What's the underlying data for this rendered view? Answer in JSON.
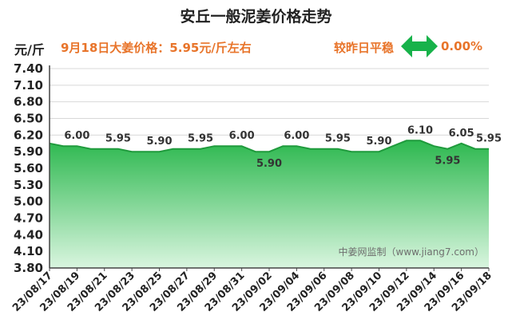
{
  "header": {
    "title": "安丘一般泥姜价格走势",
    "unit": "元/斤",
    "price_text": "9月18日大姜价格：5.95元/斤左右",
    "compare_text": "较昨日平稳",
    "change_text": "0.00%"
  },
  "watermark": "中姜网监制（www.jiang7.com）",
  "colors": {
    "accent": "#e8742a",
    "fill_top": "#2db84f",
    "fill_bottom": "#d9f5df",
    "line": "#1f9a3c",
    "arrow": "#17b24a"
  },
  "chart_data": {
    "type": "area",
    "title": "安丘一般泥姜价格走势",
    "ylabel": "元/斤",
    "ylim": [
      3.8,
      7.4
    ],
    "yticks": [
      3.8,
      4.1,
      4.4,
      4.7,
      5.0,
      5.3,
      5.6,
      5.9,
      6.2,
      6.5,
      6.8,
      7.1,
      7.4
    ],
    "grid": true,
    "x": [
      "23/08/17",
      "23/08/18",
      "23/08/19",
      "23/08/20",
      "23/08/21",
      "23/08/22",
      "23/08/23",
      "23/08/24",
      "23/08/25",
      "23/08/26",
      "23/08/27",
      "23/08/28",
      "23/08/29",
      "23/08/30",
      "23/08/31",
      "23/09/01",
      "23/09/02",
      "23/09/03",
      "23/09/04",
      "23/09/05",
      "23/09/06",
      "23/09/07",
      "23/09/08",
      "23/09/09",
      "23/09/10",
      "23/09/11",
      "23/09/12",
      "23/09/13",
      "23/09/14",
      "23/09/15",
      "23/09/16",
      "23/09/17",
      "23/09/18"
    ],
    "xtick_labels": [
      "23/08/17",
      "23/08/19",
      "23/08/21",
      "23/08/23",
      "23/08/25",
      "23/08/27",
      "23/08/29",
      "23/08/31",
      "23/09/02",
      "23/09/04",
      "23/09/06",
      "23/09/08",
      "23/09/10",
      "23/09/12",
      "23/09/14",
      "23/09/16",
      "23/09/18"
    ],
    "series": [
      {
        "values": [
          6.05,
          6.0,
          6.0,
          5.95,
          5.95,
          5.95,
          5.9,
          5.9,
          5.9,
          5.95,
          5.95,
          5.95,
          6.0,
          6.0,
          6.0,
          5.9,
          5.9,
          6.0,
          6.0,
          5.95,
          5.95,
          5.95,
          5.9,
          5.9,
          5.9,
          6.0,
          6.1,
          6.1,
          6.0,
          5.95,
          6.05,
          5.95,
          5.95
        ]
      }
    ],
    "data_labels": [
      {
        "index": 2,
        "text": "6.00",
        "pos": "above"
      },
      {
        "index": 5,
        "text": "5.95",
        "pos": "above"
      },
      {
        "index": 8,
        "text": "5.90",
        "pos": "above"
      },
      {
        "index": 11,
        "text": "5.95",
        "pos": "above"
      },
      {
        "index": 14,
        "text": "6.00",
        "pos": "above"
      },
      {
        "index": 16,
        "text": "5.90",
        "pos": "below"
      },
      {
        "index": 18,
        "text": "6.00",
        "pos": "above"
      },
      {
        "index": 21,
        "text": "5.95",
        "pos": "above"
      },
      {
        "index": 24,
        "text": "5.90",
        "pos": "above"
      },
      {
        "index": 27,
        "text": "6.10",
        "pos": "above"
      },
      {
        "index": 29,
        "text": "5.95",
        "pos": "below"
      },
      {
        "index": 30,
        "text": "6.05",
        "pos": "above"
      },
      {
        "index": 32,
        "text": "5.95",
        "pos": "above"
      }
    ]
  }
}
